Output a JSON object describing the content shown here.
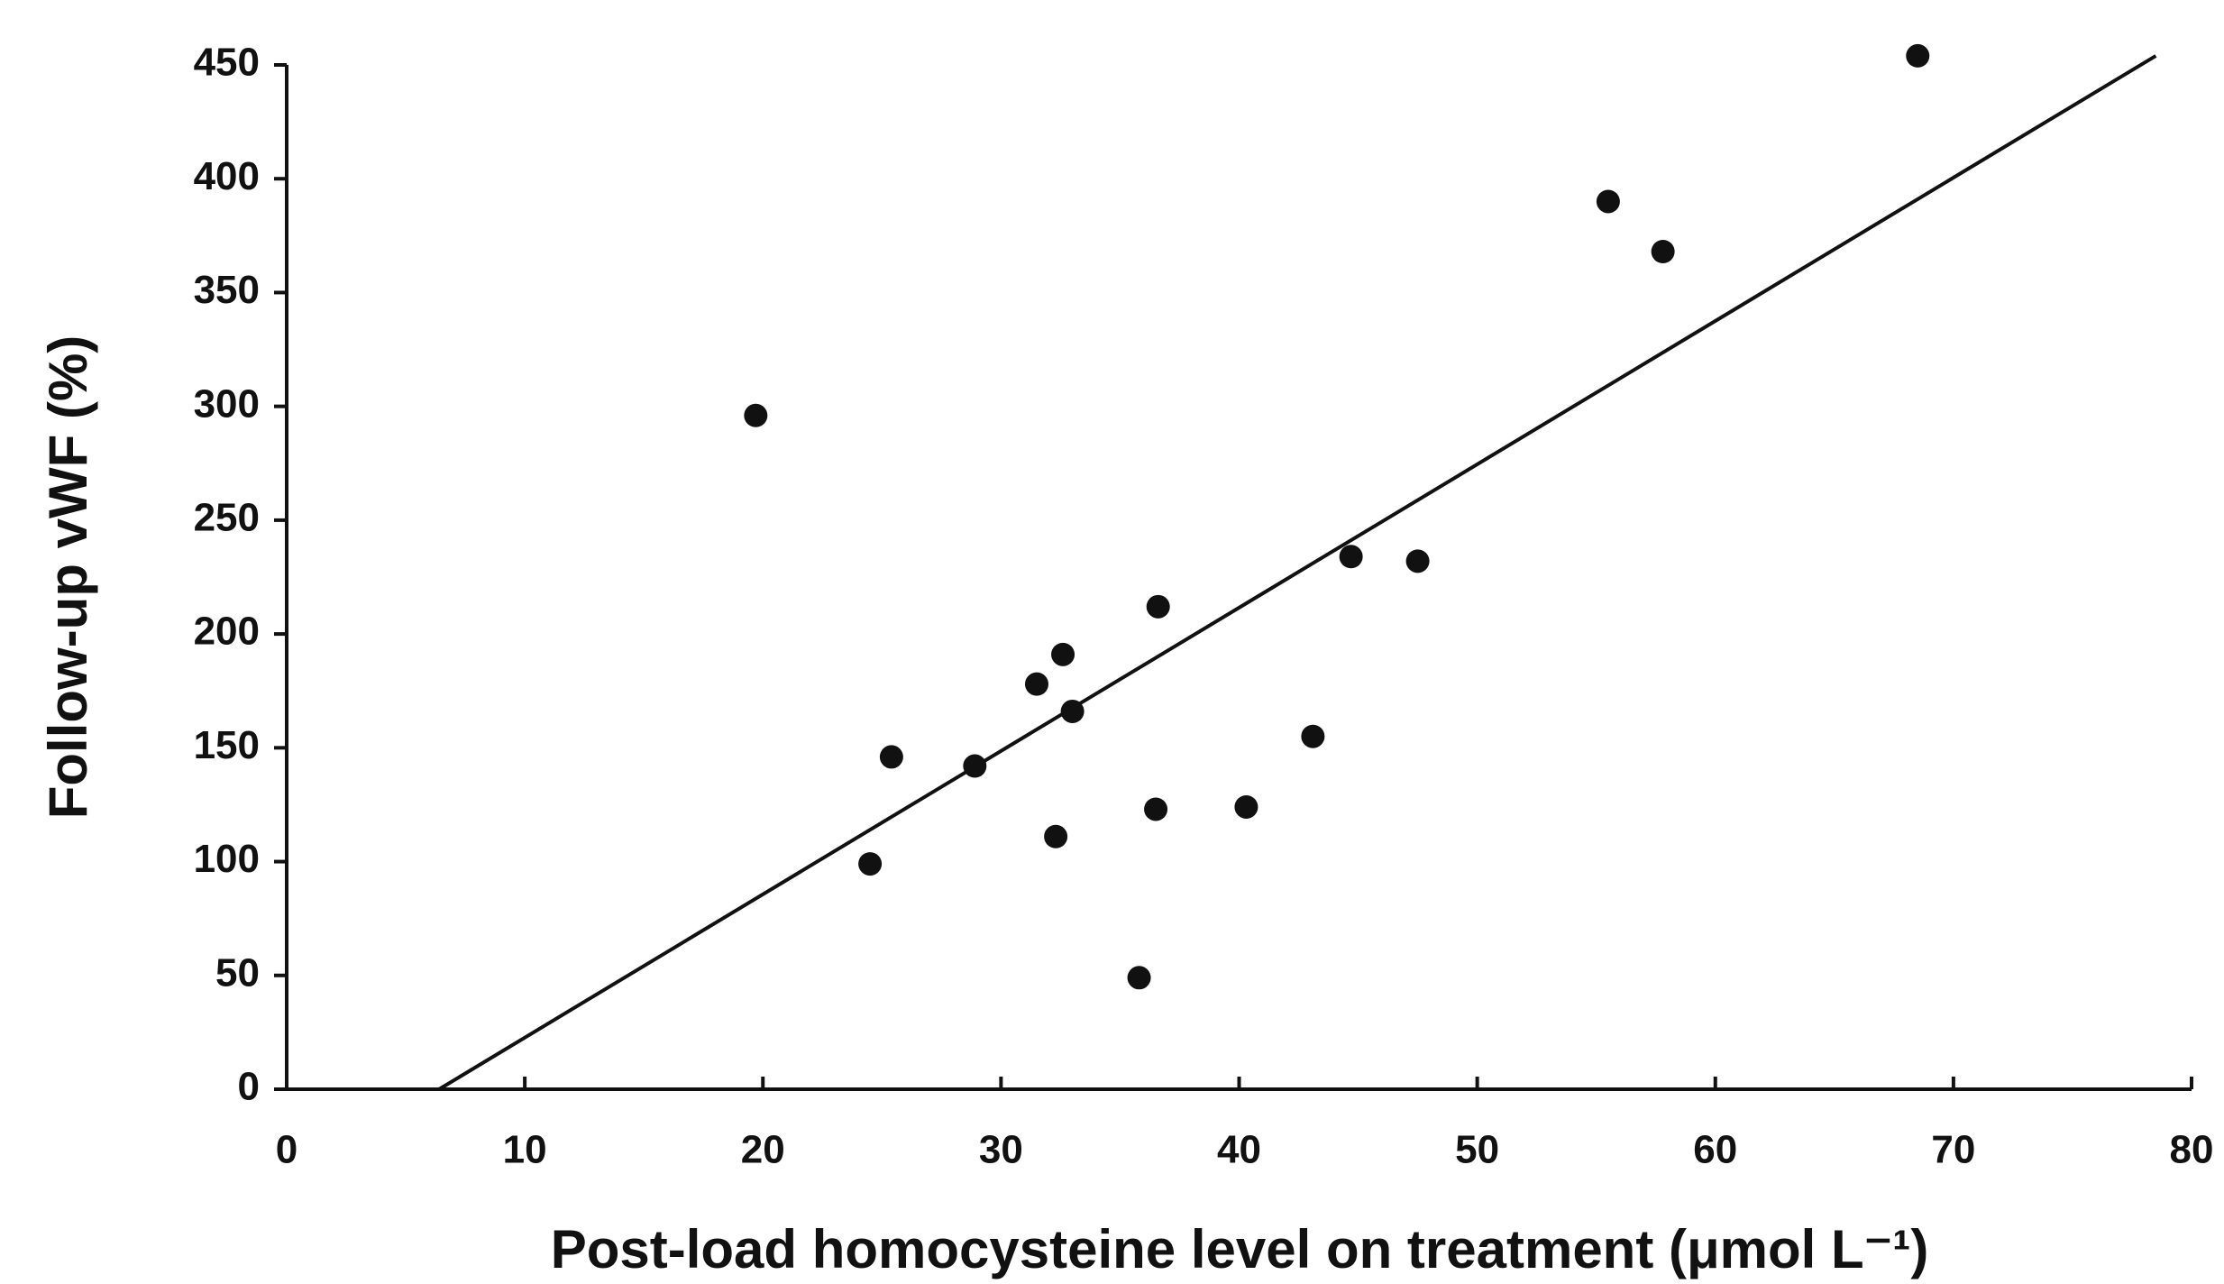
{
  "chart_data": {
    "type": "scatter",
    "x_label": "Post-load homocysteine level on treatment (μmol L⁻¹)",
    "y_label": "Follow-up vWF (%)",
    "x": [
      19.7,
      24.5,
      25.4,
      28.9,
      31.5,
      32.6,
      32.3,
      33.0,
      36.6,
      36.5,
      35.8,
      40.3,
      43.1,
      44.7,
      47.5,
      55.5,
      57.8,
      68.5
    ],
    "values": [
      296,
      99,
      146,
      142,
      178,
      191,
      111,
      166,
      212,
      123,
      49,
      124,
      155,
      234,
      232,
      390,
      368,
      454
    ],
    "color": "#111111",
    "trend_line": {
      "x": [
        6.4,
        78.5
      ],
      "values": [
        0,
        454
      ]
    },
    "xlim": [
      0,
      80
    ],
    "xticks": [
      0,
      10,
      20,
      30,
      40,
      50,
      60,
      70,
      80
    ],
    "ylim": [
      0,
      450
    ],
    "yticks": [
      0,
      50,
      100,
      150,
      200,
      250,
      300,
      350,
      400,
      450
    ],
    "grid": false
  }
}
